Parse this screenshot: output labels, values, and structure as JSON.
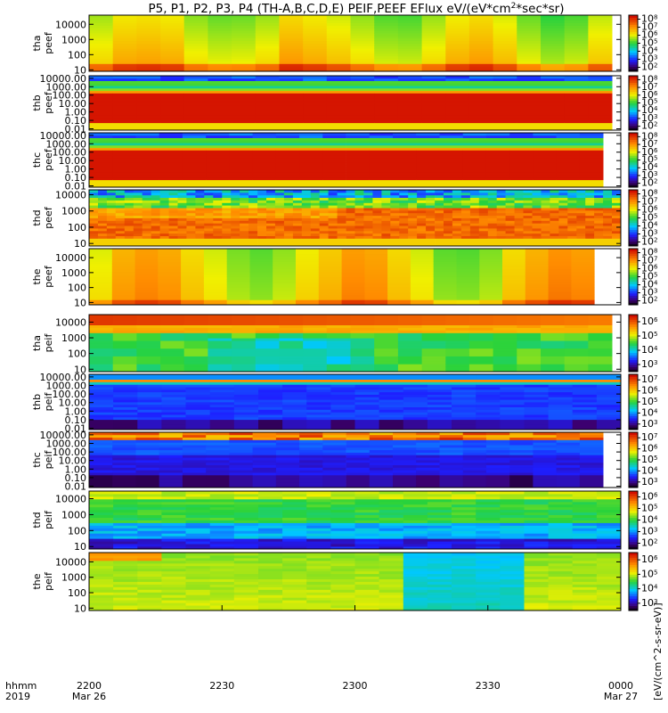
{
  "title": "P5, P1, P2, P3, P4 (TH-A,B,C,D,E) PEIF,PEEF EFlux eV/(eV*cm",
  "title_sup": "2",
  "title_tail": "*sec*sr)",
  "time_axis": {
    "corner_top": "hhmm",
    "corner_bottom": "2019",
    "ticks": [
      {
        "t": 0,
        "label": "2200",
        "date": "Mar 26"
      },
      {
        "t": 30,
        "label": "2230",
        "date": ""
      },
      {
        "t": 60,
        "label": "2300",
        "date": ""
      },
      {
        "t": 90,
        "label": "2330",
        "date": ""
      },
      {
        "t": 120,
        "label": "0000",
        "date": "Mar 27"
      }
    ]
  },
  "colorbar_units_text": "[eV/(cm^2-s-sr-eV)]",
  "chart_data": {
    "type": "heatmap",
    "x_unit": "minutes after 2019-03-26 22:00",
    "x_range": [
      0,
      120
    ],
    "panels": [
      {
        "probe": "tha",
        "product": "peef",
        "ylabel": [
          "tha",
          "peef"
        ],
        "ylog": true,
        "yrange": [
          8,
          40000
        ],
        "yticks": [
          "10",
          "100",
          "1000",
          "10000"
        ],
        "cbar": [
          "10^2",
          "10^3",
          "10^4",
          "10^5",
          "10^6",
          "10^7",
          "10^8"
        ],
        "data_end": 118,
        "style": "warm"
      },
      {
        "probe": "thb",
        "product": "peef",
        "ylabel": [
          "thb",
          "peef"
        ],
        "ylog": true,
        "yrange": [
          0.007,
          20000
        ],
        "yticks": [
          "0.01",
          "0.10",
          "1.00",
          "10.00",
          "100.00",
          "1000.00",
          "10000.00"
        ],
        "cbar": [
          "10^2",
          "10^3",
          "10^4",
          "10^5",
          "10^6",
          "10^7",
          "10^8"
        ],
        "data_end": 118,
        "style": "banded"
      },
      {
        "probe": "thc",
        "product": "peef",
        "ylabel": [
          "thc",
          "peef"
        ],
        "ylog": true,
        "yrange": [
          0.007,
          20000
        ],
        "yticks": [
          "0.01",
          "0.10",
          "1.00",
          "10.00",
          "100.00",
          "1000.00",
          "10000.00"
        ],
        "cbar": [
          "10^2",
          "10^3",
          "10^4",
          "10^5",
          "10^6",
          "10^7",
          "10^8"
        ],
        "data_end": 116,
        "style": "banded"
      },
      {
        "probe": "thd",
        "product": "peef",
        "ylabel": [
          "thd",
          "peef"
        ],
        "ylog": true,
        "yrange": [
          7,
          20000
        ],
        "yticks": [
          "10",
          "100",
          "1000",
          "10000"
        ],
        "cbar": [
          "10^2",
          "10^3",
          "10^4",
          "10^5",
          "10^6",
          "10^7",
          "10^8"
        ],
        "data_end": 120,
        "style": "noisy"
      },
      {
        "probe": "the",
        "product": "peef",
        "ylabel": [
          "the",
          "peef"
        ],
        "ylog": true,
        "yrange": [
          7,
          40000
        ],
        "yticks": [
          "10",
          "100",
          "1000",
          "10000"
        ],
        "cbar": [
          "10^2",
          "10^3",
          "10^4",
          "10^5",
          "10^6",
          "10^7",
          "10^8"
        ],
        "data_end": 114,
        "style": "warm2"
      },
      {
        "probe": "tha",
        "product": "peif",
        "ylabel": [
          "tha",
          "peif"
        ],
        "ylog": true,
        "yrange": [
          7,
          30000
        ],
        "yticks": [
          "10",
          "100",
          "1000",
          "10000"
        ],
        "cbar": [
          "10^3",
          "10^4",
          "10^5",
          "10^6"
        ],
        "data_end": 118,
        "style": "ion_a"
      },
      {
        "probe": "thb",
        "product": "peif",
        "ylabel": [
          "thb",
          "peif"
        ],
        "ylog": true,
        "yrange": [
          0.007,
          20000
        ],
        "yticks": [
          "0.01",
          "0.10",
          "1.00",
          "10.00",
          "100.00",
          "1000.00",
          "10000.00"
        ],
        "cbar": [
          "10^3",
          "10^4",
          "10^5",
          "10^6",
          "10^7"
        ],
        "data_end": 120,
        "style": "ion_b"
      },
      {
        "probe": "thc",
        "product": "peif",
        "ylabel": [
          "thc",
          "peif"
        ],
        "ylog": true,
        "yrange": [
          0.007,
          20000
        ],
        "yticks": [
          "0.01",
          "0.10",
          "1.00",
          "10.00",
          "100.00",
          "1000.00",
          "10000.00"
        ],
        "cbar": [
          "10^3",
          "10^4",
          "10^5",
          "10^6",
          "10^7"
        ],
        "data_end": 116,
        "style": "ion_c"
      },
      {
        "probe": "thd",
        "product": "peif",
        "ylabel": [
          "thd",
          "peif"
        ],
        "ylog": true,
        "yrange": [
          7,
          30000
        ],
        "yticks": [
          "10",
          "100",
          "1000",
          "10000"
        ],
        "cbar": [
          "10^2",
          "10^3",
          "10^4",
          "10^5",
          "10^6"
        ],
        "data_end": 120,
        "style": "ion_d"
      },
      {
        "probe": "the",
        "product": "peif",
        "ylabel": [
          "the",
          "peif"
        ],
        "ylog": true,
        "yrange": [
          7,
          40000
        ],
        "yticks": [
          "10",
          "100",
          "1000",
          "10000"
        ],
        "cbar": [
          "10^3",
          "10^4",
          "10^5",
          "10^6"
        ],
        "data_end": 120,
        "style": "ion_e"
      }
    ]
  },
  "colors": {
    "black": "#000000",
    "purple": "#4b0082",
    "blue": "#1a1aff",
    "cyan": "#00e5ff",
    "green": "#2ed22e",
    "yellow": "#f2f200",
    "orange": "#ff8c00",
    "red": "#cc0000"
  }
}
